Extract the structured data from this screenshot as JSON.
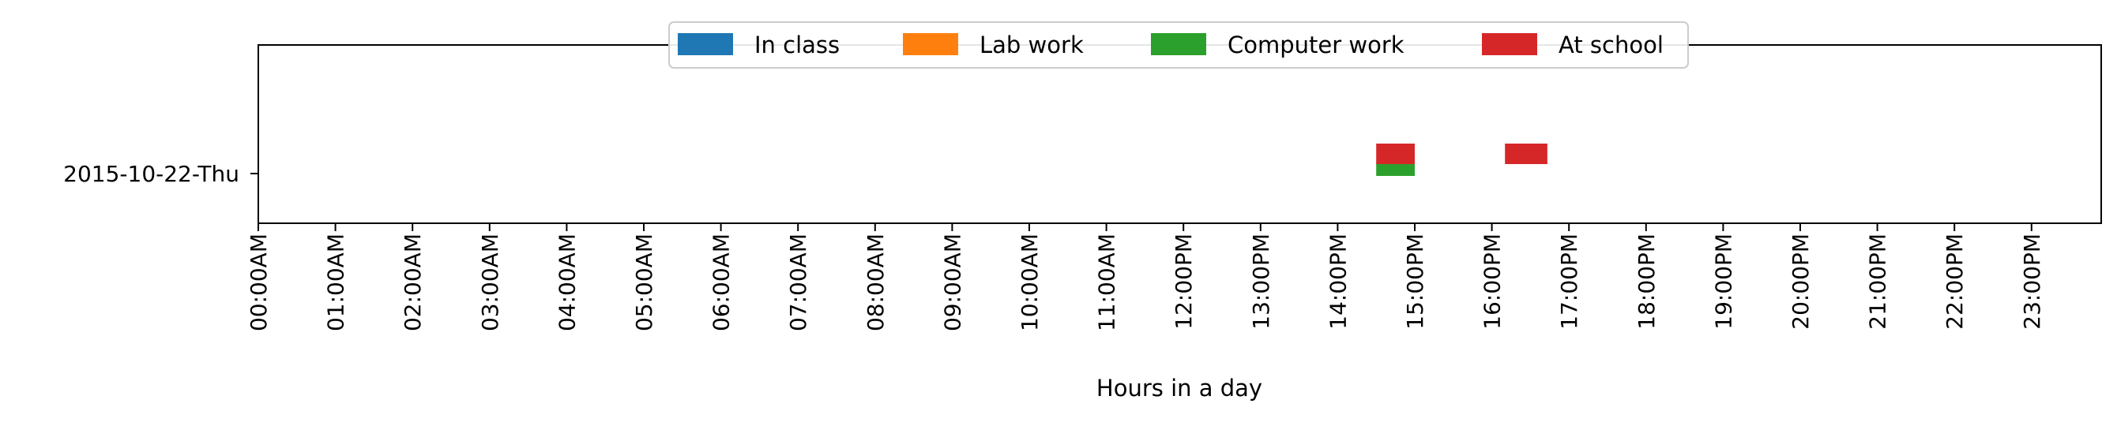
{
  "chart_data": {
    "type": "bar",
    "orientation": "horizontal-timeline",
    "title": "",
    "xlabel": "Hours in a day",
    "ylabel": "",
    "xlim": [
      0,
      24
    ],
    "x_tick_labels": [
      "00:00AM",
      "01:00AM",
      "02:00AM",
      "03:00AM",
      "04:00AM",
      "05:00AM",
      "06:00AM",
      "07:00AM",
      "08:00AM",
      "09:00AM",
      "10:00AM",
      "11:00AM",
      "12:00PM",
      "13:00PM",
      "14:00PM",
      "15:00PM",
      "16:00PM",
      "17:00PM",
      "18:00PM",
      "19:00PM",
      "20:00PM",
      "21:00PM",
      "22:00PM",
      "23:00PM"
    ],
    "categories": [
      "2015-10-22-Thu"
    ],
    "grid": false,
    "legend_position": "top-center",
    "series": [
      {
        "name": "In class",
        "color": "#1f77b4",
        "intervals": []
      },
      {
        "name": "Lab work",
        "color": "#ff7f0e",
        "intervals": []
      },
      {
        "name": "Computer work",
        "color": "#2ca02c",
        "intervals": [
          {
            "day": "2015-10-22-Thu",
            "start": 14.5,
            "end": 15.0
          }
        ]
      },
      {
        "name": "At school",
        "color": "#d62728",
        "intervals": [
          {
            "day": "2015-10-22-Thu",
            "start": 14.5,
            "end": 15.0
          },
          {
            "day": "2015-10-22-Thu",
            "start": 16.17,
            "end": 16.72
          }
        ]
      }
    ]
  }
}
